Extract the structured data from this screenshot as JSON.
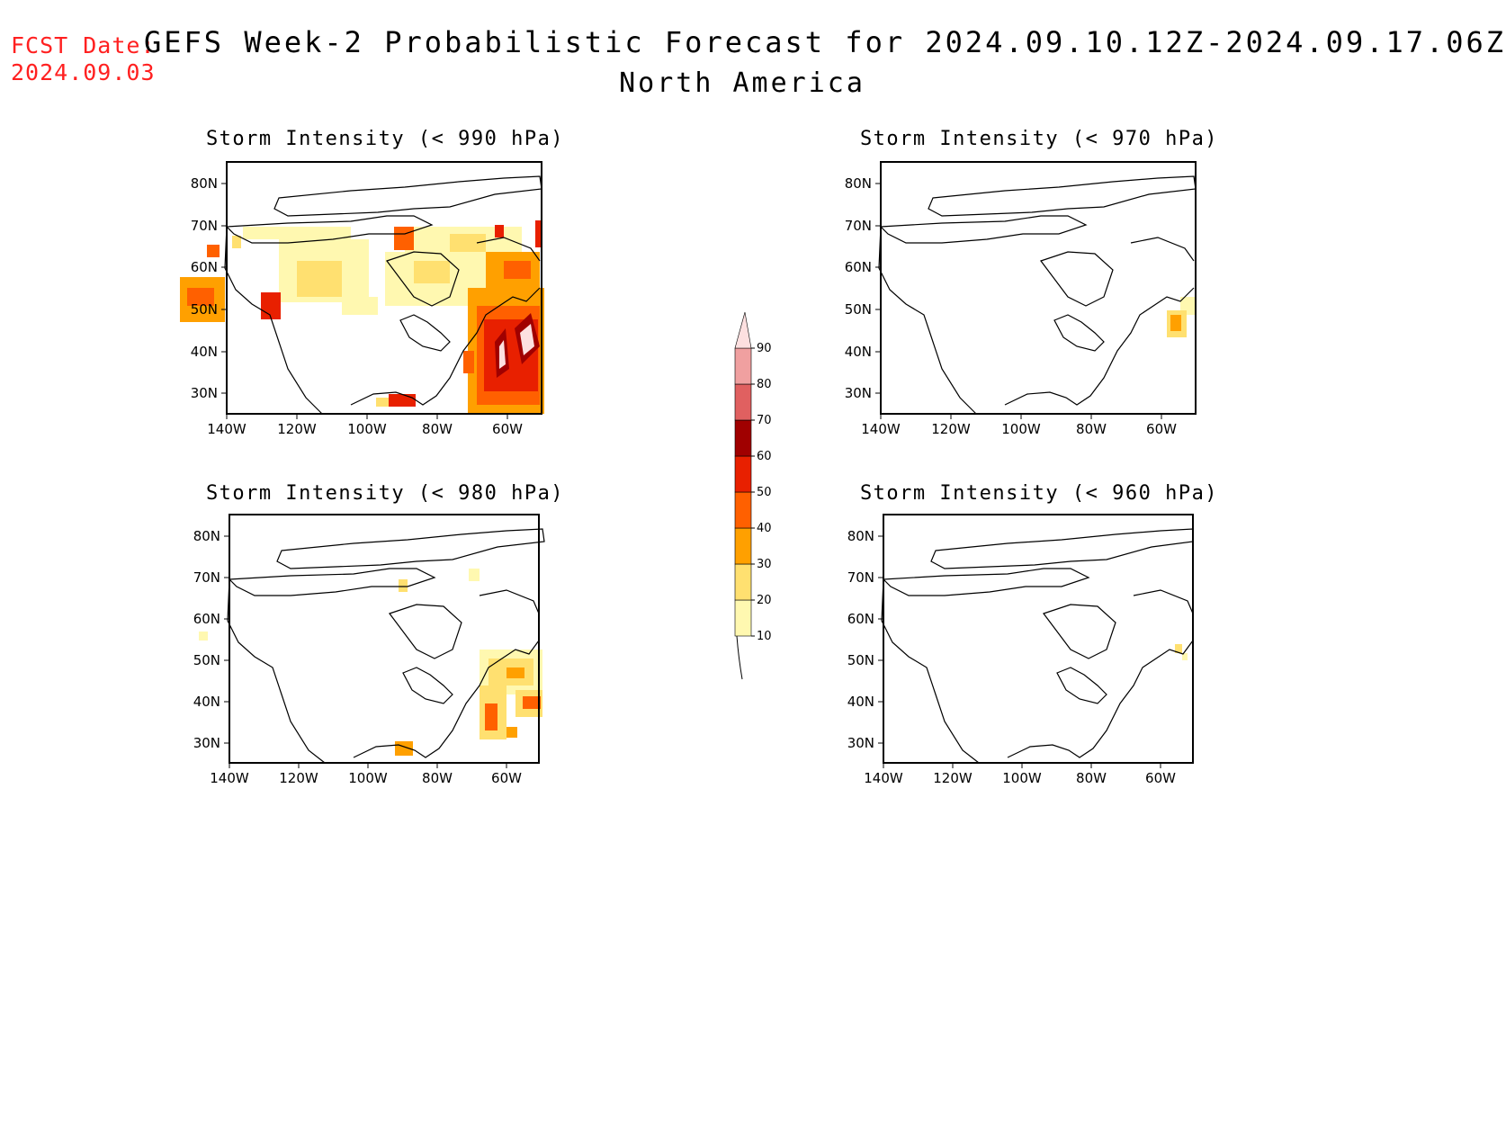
{
  "header": {
    "fcst_label": "FCST Date:",
    "fcst_date": "2024.09.03",
    "title": "GEFS Week-2 Probabilistic Forecast for 2024.09.10.12Z-2024.09.17.06Z",
    "subtitle": "North America"
  },
  "axes": {
    "lat_labels": [
      "80N",
      "70N",
      "60N",
      "50N",
      "40N",
      "30N"
    ],
    "lon_labels": [
      "140W",
      "120W",
      "100W",
      "80W",
      "60W"
    ]
  },
  "panels": [
    {
      "title": "Storm Intensity (< 990 hPa)",
      "threshold_hPa": 990
    },
    {
      "title": "Storm Intensity (< 970 hPa)",
      "threshold_hPa": 970
    },
    {
      "title": "Storm Intensity (< 980 hPa)",
      "threshold_hPa": 980
    },
    {
      "title": "Storm Intensity (< 960 hPa)",
      "threshold_hPa": 960
    }
  ],
  "colorbar": {
    "levels": [
      "10",
      "20",
      "30",
      "40",
      "50",
      "60",
      "70",
      "80",
      "90"
    ],
    "colors": [
      "#fff8b0",
      "#ffe070",
      "#ffa000",
      "#ff6000",
      "#e82000",
      "#a00000",
      "#e06060",
      "#f0a0a0",
      "#fde0e0"
    ]
  }
}
